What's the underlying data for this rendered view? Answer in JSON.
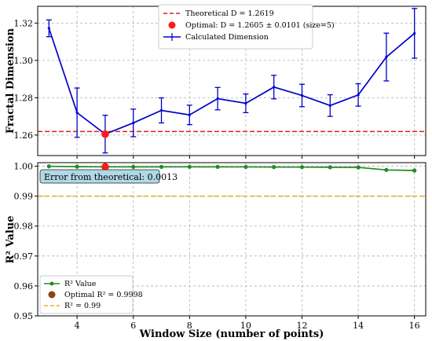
{
  "chart_data": [
    {
      "type": "line",
      "ylabel": "Fractal Dimension",
      "xlim": [
        2.6,
        16.4
      ],
      "ylim": [
        1.249,
        1.329
      ],
      "xticks": [
        4,
        6,
        8,
        10,
        12,
        14,
        16
      ],
      "yticks": [
        1.26,
        1.28,
        1.3,
        1.32
      ],
      "ytick_labels": [
        "1.26",
        "1.28",
        "1.30",
        "1.32"
      ],
      "grid": true,
      "legend_position": "top-center",
      "series": [
        {
          "name": "Calculated Dimension",
          "color": "#0000cc",
          "x": [
            3,
            4,
            5,
            6,
            7,
            8,
            9,
            10,
            11,
            12,
            13,
            14,
            15,
            16
          ],
          "y": [
            1.3172,
            1.272,
            1.2605,
            1.2665,
            1.2732,
            1.2708,
            1.2795,
            1.277,
            1.2857,
            1.2812,
            1.2758,
            1.2815,
            1.3018,
            1.3145
          ],
          "err": [
            0.0045,
            0.0132,
            0.0101,
            0.0074,
            0.0067,
            0.0052,
            0.006,
            0.005,
            0.0063,
            0.006,
            0.0058,
            0.006,
            0.0128,
            0.0133
          ]
        }
      ],
      "reference_line": {
        "name": "Theoretical D = 1.2619",
        "y": 1.2619,
        "color": "#e31a1c"
      },
      "optimal_point": {
        "name": "Optimal: D = 1.2605 ± 0.0101 (size=5)",
        "x": 5,
        "y": 1.2605,
        "color": "#ff1a1a"
      }
    },
    {
      "type": "line",
      "xlabel": "Window Size (number of points)",
      "ylabel": "R² Value",
      "xlim": [
        2.6,
        16.4
      ],
      "ylim": [
        0.95,
        1.0012
      ],
      "xticks": [
        4,
        6,
        8,
        10,
        12,
        14,
        16
      ],
      "yticks": [
        0.95,
        0.96,
        0.97,
        0.98,
        0.99,
        1.0
      ],
      "ytick_labels": [
        "0.95",
        "0.96",
        "0.97",
        "0.98",
        "0.99",
        "1.00"
      ],
      "grid": true,
      "legend_position": "bottom-left",
      "series": [
        {
          "name": "R² Value",
          "color": "#228b22",
          "x": [
            3,
            4,
            5,
            6,
            7,
            8,
            9,
            10,
            11,
            12,
            13,
            14,
            15,
            16
          ],
          "y": [
            0.99997,
            0.99985,
            0.9998,
            0.99979,
            0.99979,
            0.9998,
            0.99978,
            0.99977,
            0.99972,
            0.99971,
            0.99966,
            0.99963,
            0.99875,
            0.99857
          ]
        }
      ],
      "reference_line": {
        "name": "R² = 0.99",
        "y": 0.99,
        "color": "#e6b422"
      },
      "optimal_point": {
        "name": "Optimal R² = 0.9998",
        "x": 5,
        "y": 0.9998,
        "color": "#8b4513",
        "marker_color": "#ff1a1a"
      },
      "annotation": {
        "text": "Error from theoretical: 0.0013",
        "bg": "#b0d8e6"
      }
    }
  ]
}
